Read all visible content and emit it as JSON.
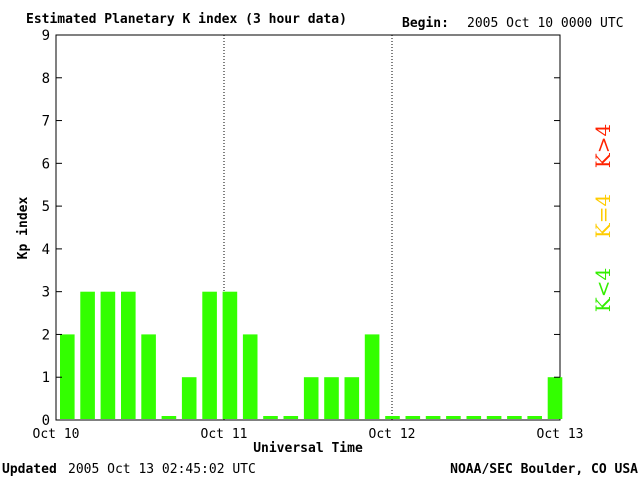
{
  "header": {
    "title": "Estimated Planetary K index (3 hour data)",
    "begin_label": "Begin:",
    "begin_value": "2005 Oct 10 0000 UTC"
  },
  "footer": {
    "updated_label": "Updated",
    "updated_value": "2005 Oct 13 02:45:02 UTC",
    "source": "NOAA/SEC Boulder, CO USA"
  },
  "legend": [
    {
      "label": "K>4",
      "color": "#ff2200"
    },
    {
      "label": "K=4",
      "color": "#ffcc00"
    },
    {
      "label": "K<4",
      "color": "#33ee00"
    }
  ],
  "chart_data": {
    "type": "bar",
    "title": "Estimated Planetary K index (3 hour data)",
    "xlabel": "Universal Time",
    "ylabel": "Kp index",
    "ylim": [
      0,
      9
    ],
    "yticks": [
      0,
      1,
      2,
      3,
      4,
      5,
      6,
      7,
      8,
      9
    ],
    "xticks": [
      "Oct 10",
      "Oct 11",
      "Oct 12",
      "Oct 13"
    ],
    "day_separators": [
      "Oct 11",
      "Oct 12"
    ],
    "bar_color": "#33ff00",
    "values": [
      2,
      3,
      3,
      3,
      2,
      0,
      1,
      3,
      3,
      2,
      0,
      0,
      1,
      1,
      1,
      2,
      0,
      0,
      0,
      0,
      0,
      0,
      0,
      0,
      1
    ]
  }
}
